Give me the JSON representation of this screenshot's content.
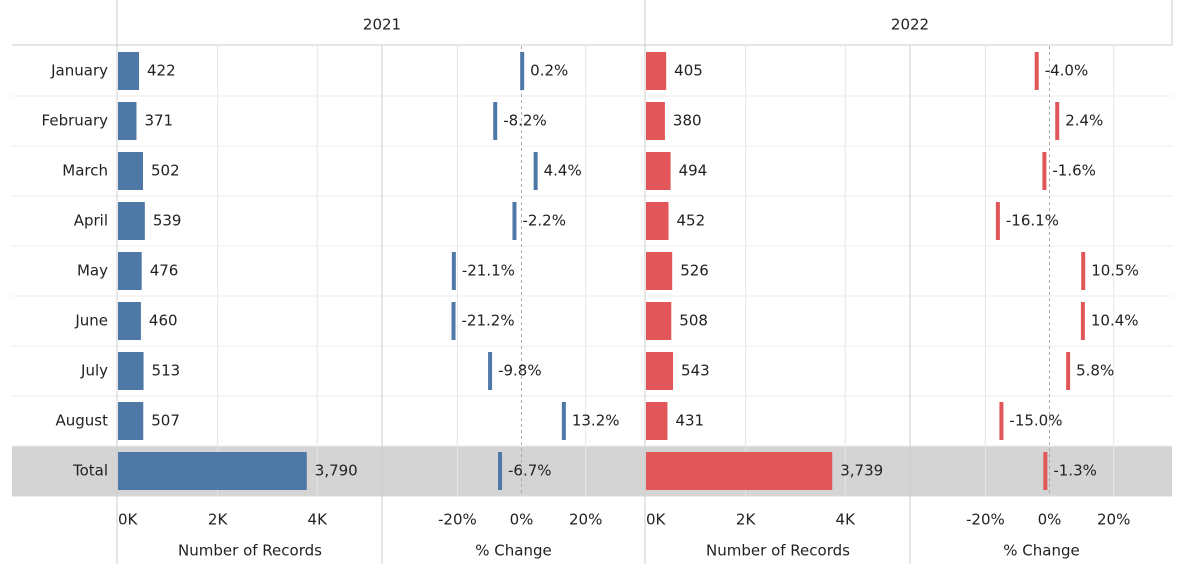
{
  "chart_data": {
    "type": "bar",
    "categories": [
      "January",
      "February",
      "March",
      "April",
      "May",
      "June",
      "July",
      "August",
      "Total"
    ],
    "records_axis": {
      "title": "Number of Records",
      "xlim": [
        0,
        5300
      ],
      "xticks": [
        {
          "value": 0,
          "label": "0K"
        },
        {
          "value": 2000,
          "label": "2K"
        },
        {
          "value": 4000,
          "label": "4K"
        }
      ]
    },
    "change_axis": {
      "title": "% Change",
      "xlim": [
        -43.5,
        38.5
      ],
      "xticks": [
        {
          "value": -20,
          "label": "-20%"
        },
        {
          "value": 0,
          "label": "0%"
        },
        {
          "value": 20,
          "label": "20%"
        }
      ]
    },
    "series": [
      {
        "name": "2021",
        "color": "#4e79a7",
        "records": [
          422,
          371,
          502,
          539,
          476,
          460,
          513,
          507,
          3790
        ],
        "records_labels": [
          "422",
          "371",
          "502",
          "539",
          "476",
          "460",
          "513",
          "507",
          "3,790"
        ],
        "change": [
          0.2,
          -8.2,
          4.4,
          -2.2,
          -21.1,
          -21.2,
          -9.8,
          13.2,
          -6.7
        ],
        "change_labels": [
          "0.2%",
          "-8.2%",
          "4.4%",
          "-2.2%",
          "-21.1%",
          "-21.2%",
          "-9.8%",
          "13.2%",
          "-6.7%"
        ]
      },
      {
        "name": "2022",
        "color": "#e15759",
        "records": [
          405,
          380,
          494,
          452,
          526,
          508,
          543,
          431,
          3739
        ],
        "records_labels": [
          "405",
          "380",
          "494",
          "452",
          "526",
          "508",
          "543",
          "431",
          "3,739"
        ],
        "change": [
          -4.0,
          2.4,
          -1.6,
          -16.1,
          10.5,
          10.4,
          5.8,
          -15.0,
          -1.3
        ],
        "change_labels": [
          "-4.0%",
          "2.4%",
          "-1.6%",
          "-16.1%",
          "10.5%",
          "10.4%",
          "5.8%",
          "-15.0%",
          "-1.3%"
        ]
      }
    ]
  }
}
